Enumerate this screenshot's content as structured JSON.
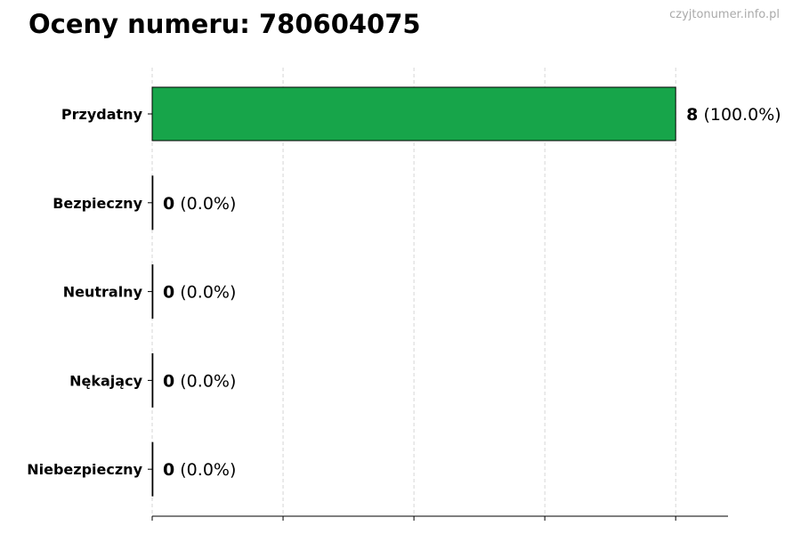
{
  "chart_data": {
    "type": "bar",
    "orientation": "horizontal",
    "title": "Oceny numeru: 780604075",
    "watermark": "czyjtonumer.info.pl",
    "categories": [
      "Przydatny",
      "Bezpieczny",
      "Neutralny",
      "Nękający",
      "Niebezpieczny"
    ],
    "values": [
      8,
      0,
      0,
      0,
      0
    ],
    "value_labels": [
      "8",
      "0",
      "0",
      "0",
      "0"
    ],
    "percent_labels": [
      "(100.0%)",
      "(0.0%)",
      "(0.0%)",
      "(0.0%)",
      "(0.0%)"
    ],
    "xlim": [
      0,
      8.8
    ],
    "xticks": [
      0,
      2,
      4,
      6,
      8
    ],
    "xtick_labels_shown": false,
    "grid": "x-dashed",
    "bar_color": "#17a54a",
    "xlabel": "",
    "ylabel": ""
  }
}
